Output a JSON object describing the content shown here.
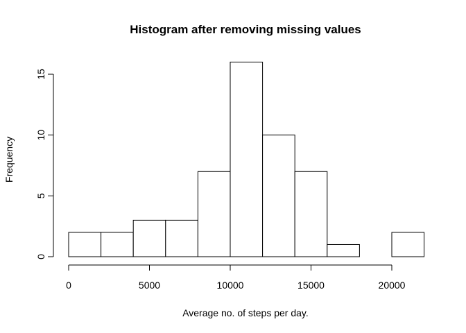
{
  "chart_data": {
    "type": "bar",
    "subtype": "histogram",
    "title": "Histogram after removing missing values",
    "xlabel": "Average no. of steps per day.",
    "ylabel": "Frequency",
    "bins": [
      {
        "start": 0,
        "end": 2000,
        "count": 2
      },
      {
        "start": 2000,
        "end": 4000,
        "count": 2
      },
      {
        "start": 4000,
        "end": 6000,
        "count": 3
      },
      {
        "start": 6000,
        "end": 8000,
        "count": 3
      },
      {
        "start": 8000,
        "end": 10000,
        "count": 7
      },
      {
        "start": 10000,
        "end": 12000,
        "count": 16
      },
      {
        "start": 12000,
        "end": 14000,
        "count": 10
      },
      {
        "start": 14000,
        "end": 16000,
        "count": 7
      },
      {
        "start": 16000,
        "end": 18000,
        "count": 1
      },
      {
        "start": 18000,
        "end": 20000,
        "count": 0
      },
      {
        "start": 20000,
        "end": 22000,
        "count": 2
      }
    ],
    "x_ticks": [
      "0",
      "5000",
      "10000",
      "15000",
      "20000"
    ],
    "y_ticks": [
      "0",
      "5",
      "10",
      "15"
    ],
    "xlim": [
      0,
      22000
    ],
    "ylim": [
      0,
      16
    ],
    "grid": false,
    "bar_fill": "#ffffff",
    "bar_stroke": "#000000"
  }
}
